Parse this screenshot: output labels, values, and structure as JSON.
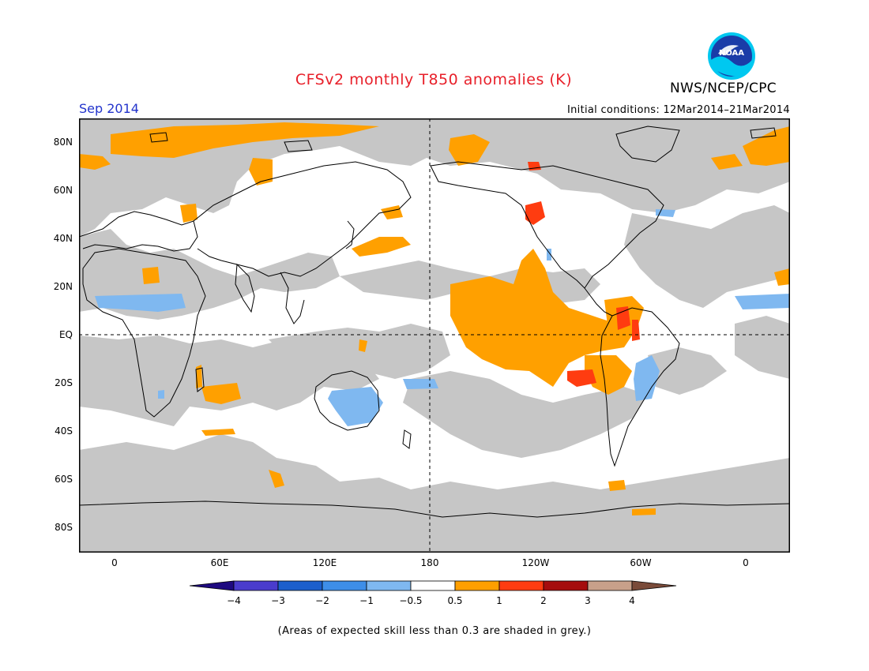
{
  "header": {
    "title": "CFSv2 monthly T850 anomalies (K)",
    "month": "Sep 2014",
    "initial_conditions": "Initial conditions: 12Mar2014–21Mar2014",
    "agency": "NWS/NCEP/CPC",
    "logo_text": "NOAA"
  },
  "axes": {
    "lat_labels": [
      "80N",
      "60N",
      "40N",
      "20N",
      "EQ",
      "20S",
      "40S",
      "60S",
      "80S"
    ],
    "lon_labels": [
      "0",
      "60E",
      "120E",
      "180",
      "120W",
      "60W",
      "0"
    ]
  },
  "colorbar": {
    "ticks": [
      "−4",
      "−3",
      "−2",
      "−1",
      "−0.5",
      "0.5",
      "1",
      "2",
      "3",
      "4"
    ],
    "colors": [
      "#1e0a80",
      "#4a3ccd",
      "#1c5fcc",
      "#3e8ee8",
      "#7fb8f0",
      "#ffffff",
      "#ff9f00",
      "#ff3c10",
      "#a50d0d",
      "#c8a08a",
      "#7a4b3a"
    ]
  },
  "map": {
    "skill_mask_color": "#c6c6c6",
    "warm_05_1_color": "#ffa000",
    "warm_1_2_color": "#ff3c10",
    "cool_05_1_color": "#7fb8f0",
    "land_outline_color": "#000000"
  },
  "footnote": "(Areas of expected skill less than 0.3 are shaded in grey.)"
}
